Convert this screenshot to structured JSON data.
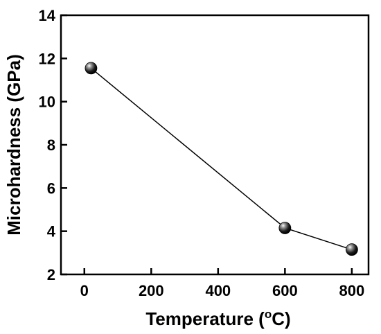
{
  "chart_data": {
    "type": "line",
    "xlabel": "Temperature (",
    "xlabel_sup": "o",
    "xlabel_unit": "C)",
    "ylabel": "Microhardness (GPa)",
    "xlim": [
      -70,
      850
    ],
    "ylim": [
      2,
      14
    ],
    "xticks": [
      0,
      200,
      400,
      600,
      800
    ],
    "yticks": [
      2,
      4,
      6,
      8,
      10,
      12,
      14
    ],
    "series": [
      {
        "x": [
          20,
          600,
          800
        ],
        "y": [
          11.55,
          4.15,
          3.15
        ],
        "marker": "sphere",
        "color": "#000000"
      }
    ],
    "grid": false,
    "legend": "none"
  }
}
